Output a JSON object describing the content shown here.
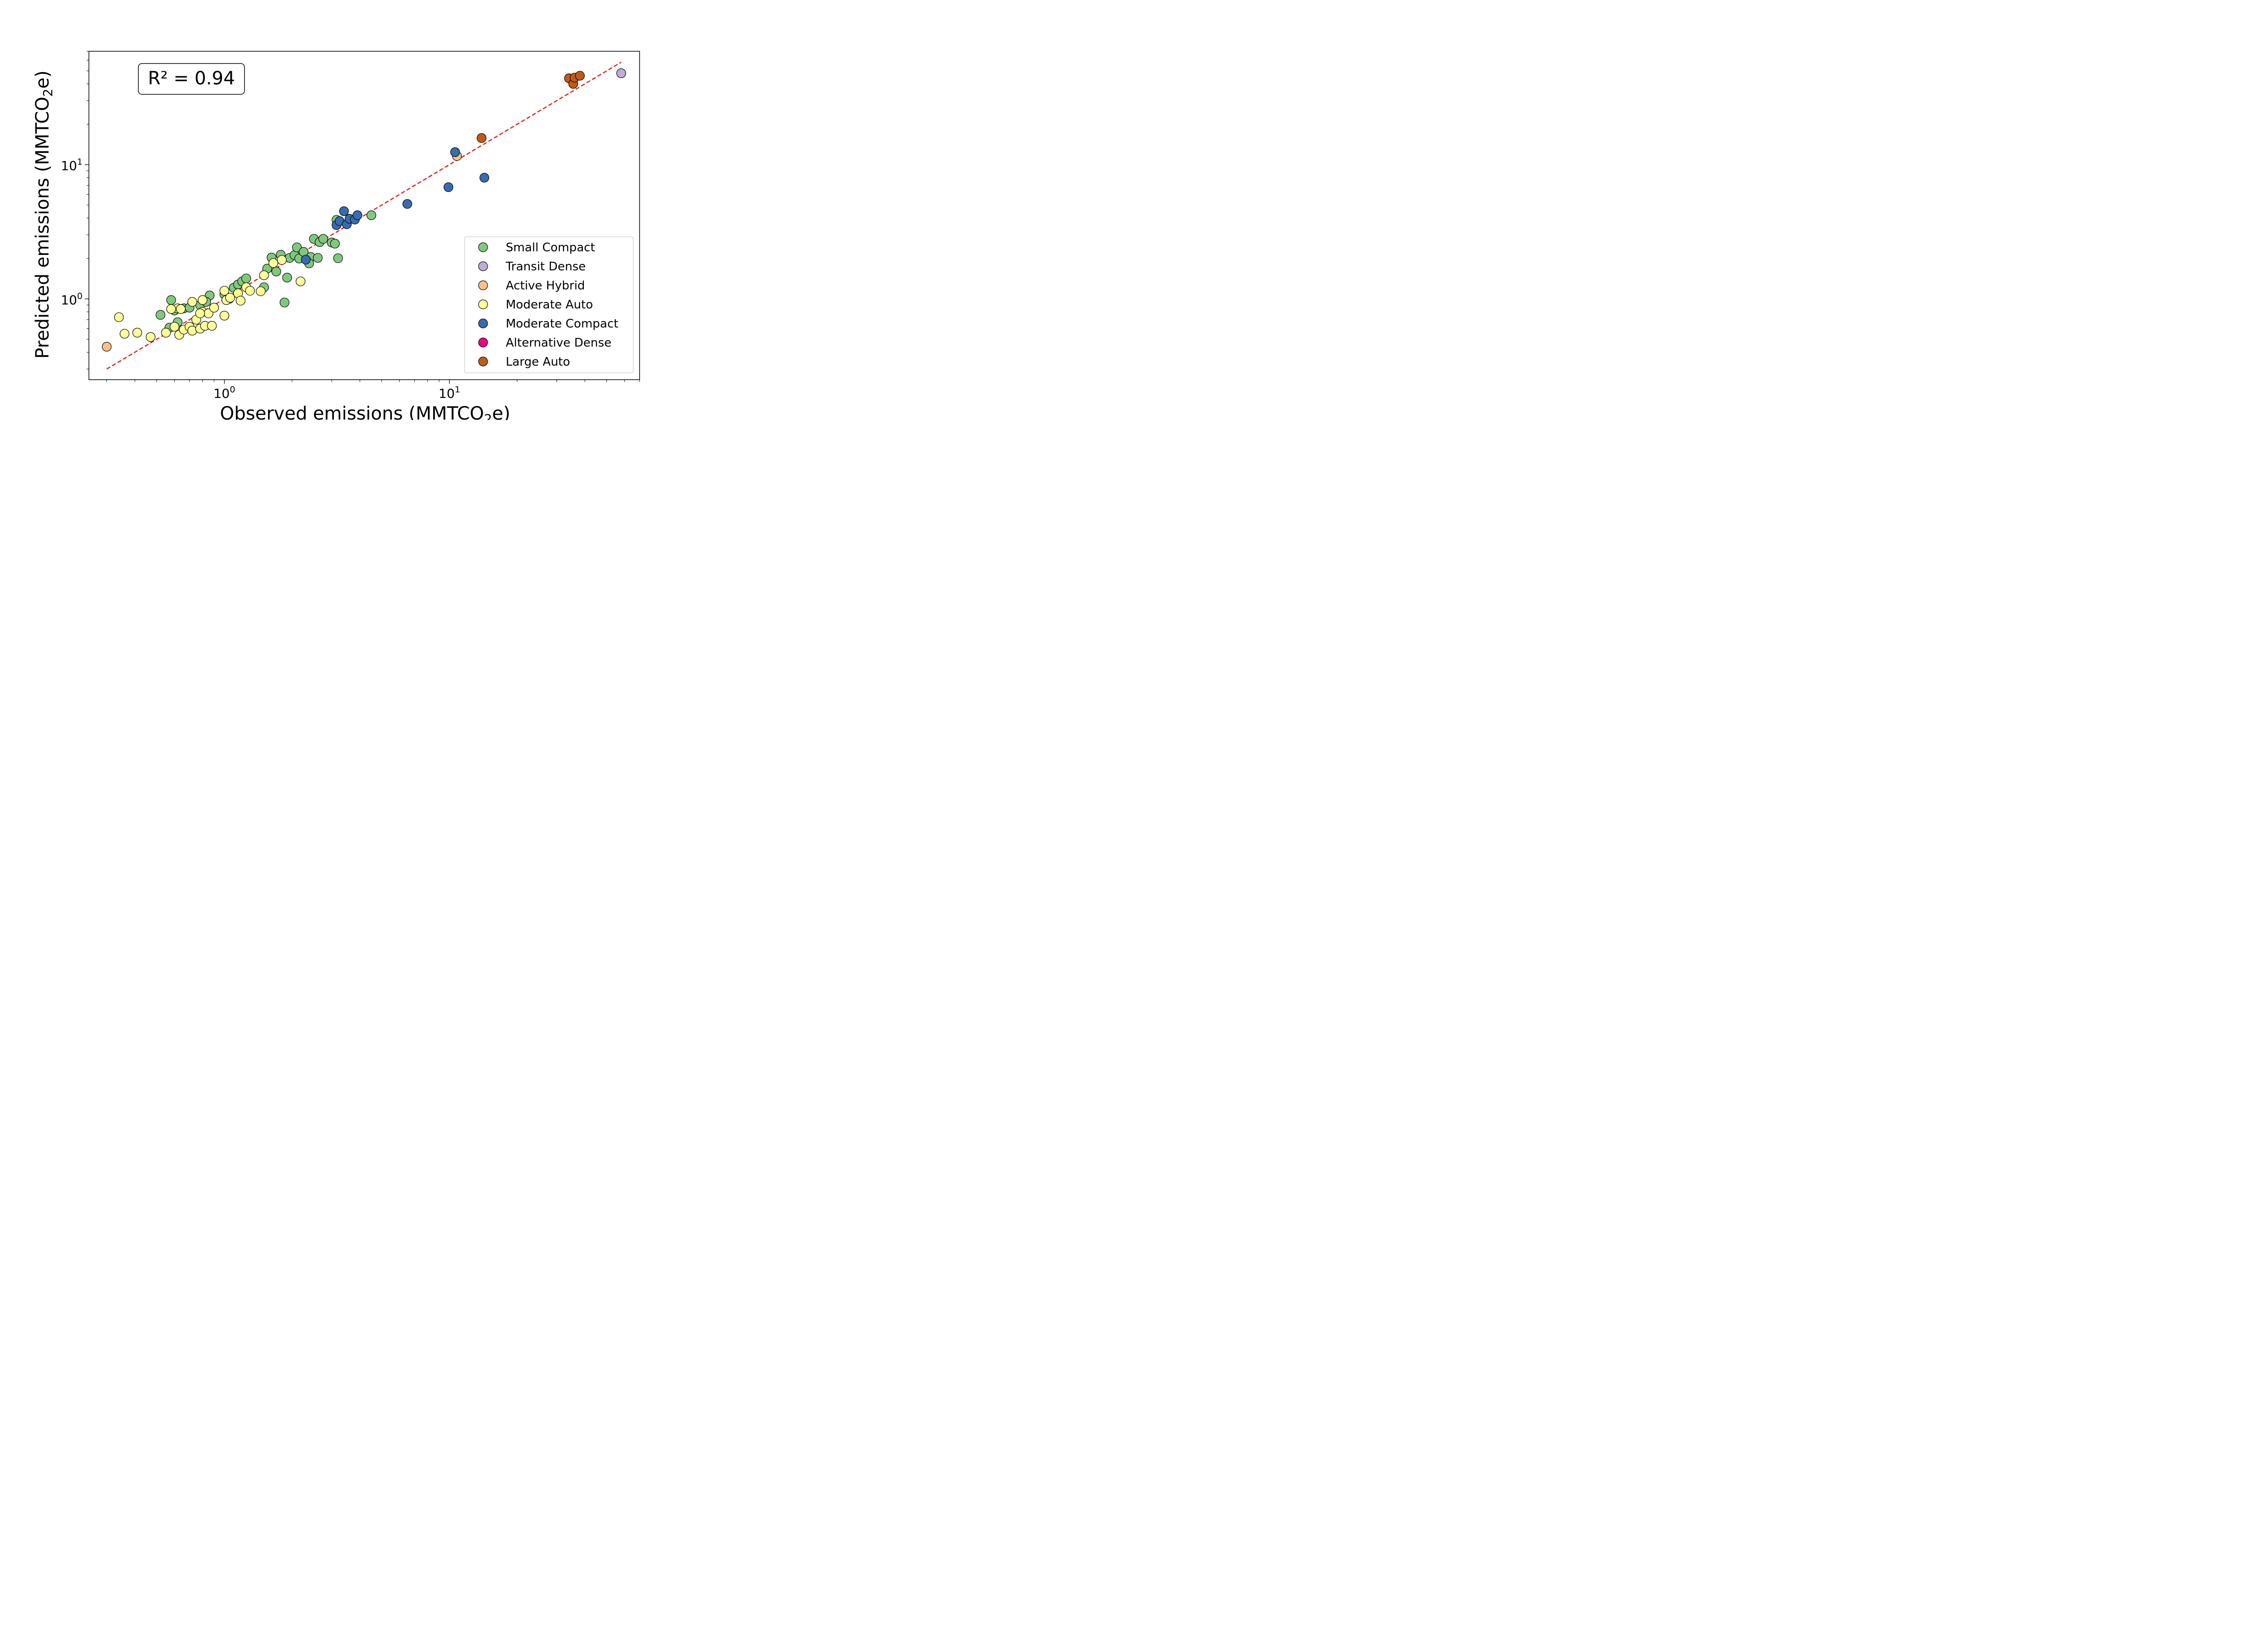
{
  "chart_data": {
    "type": "scatter",
    "title": "",
    "xlabel": "Observed emissions (MMTCO",
    "xlabel_sub": "2",
    "xlabel_end": "e)",
    "ylabel": "Predicted emissions (MMTCO",
    "ylabel_sub": "2",
    "ylabel_end": "e)",
    "x_scale": "log",
    "y_scale": "log",
    "xlim": [
      0.25,
      70
    ],
    "ylim": [
      0.25,
      70
    ],
    "grid": false,
    "legend_position": "lower right",
    "ticks": {
      "x": [
        {
          "value": 1,
          "base": "10",
          "exp": "0"
        },
        {
          "value": 10,
          "base": "10",
          "exp": "1"
        }
      ],
      "y": [
        {
          "value": 1,
          "base": "10",
          "exp": "0"
        },
        {
          "value": 10,
          "base": "10",
          "exp": "1"
        }
      ]
    },
    "annotation": "R² = 0.94",
    "reference_line": {
      "style": "dashed",
      "color": "#e41a1c",
      "from": [
        0.3,
        0.3
      ],
      "to": [
        58,
        58
      ]
    },
    "series": [
      {
        "name": "Small Compact",
        "color": "#7fc97f",
        "points": [
          [
            0.52,
            0.76
          ],
          [
            0.58,
            0.98
          ],
          [
            0.6,
            0.82
          ],
          [
            0.62,
            0.67
          ],
          [
            0.57,
            0.61
          ],
          [
            0.66,
            0.85
          ],
          [
            0.7,
            0.86
          ],
          [
            0.78,
            0.9
          ],
          [
            0.86,
            1.06
          ],
          [
            0.83,
            0.95
          ],
          [
            1.0,
            1.08
          ],
          [
            1.05,
            1.0
          ],
          [
            1.1,
            1.21
          ],
          [
            1.15,
            1.28
          ],
          [
            1.2,
            1.35
          ],
          [
            1.25,
            1.42
          ],
          [
            1.5,
            1.22
          ],
          [
            1.55,
            1.68
          ],
          [
            1.62,
            2.03
          ],
          [
            1.7,
            1.6
          ],
          [
            1.78,
            2.13
          ],
          [
            1.9,
            1.44
          ],
          [
            1.95,
            2.02
          ],
          [
            2.05,
            2.12
          ],
          [
            2.1,
            2.42
          ],
          [
            2.15,
            2.0
          ],
          [
            2.25,
            2.24
          ],
          [
            2.35,
            1.95
          ],
          [
            2.42,
            2.05
          ],
          [
            2.5,
            2.8
          ],
          [
            2.6,
            2.02
          ],
          [
            2.65,
            2.65
          ],
          [
            2.75,
            2.8
          ],
          [
            3.0,
            2.63
          ],
          [
            3.1,
            2.58
          ],
          [
            3.2,
            2.01
          ],
          [
            3.15,
            3.88
          ],
          [
            4.5,
            4.2
          ],
          [
            1.85,
            0.94
          ],
          [
            2.38,
            1.84
          ]
        ]
      },
      {
        "name": "Transit Dense",
        "color": "#beaed4",
        "points": [
          [
            58,
            48
          ]
        ]
      },
      {
        "name": "Active Hybrid",
        "color": "#fdc086",
        "points": [
          [
            0.3,
            0.44
          ],
          [
            10.8,
            11.6
          ]
        ]
      },
      {
        "name": "Moderate Auto",
        "color": "#ffff99",
        "points": [
          [
            0.34,
            0.73
          ],
          [
            0.36,
            0.55
          ],
          [
            0.41,
            0.56
          ],
          [
            0.47,
            0.52
          ],
          [
            0.55,
            0.56
          ],
          [
            0.6,
            0.62
          ],
          [
            0.62,
            0.85
          ],
          [
            0.63,
            0.54
          ],
          [
            0.66,
            0.59
          ],
          [
            0.7,
            0.62
          ],
          [
            0.72,
            0.58
          ],
          [
            0.75,
            0.7
          ],
          [
            0.78,
            0.6
          ],
          [
            0.8,
            0.8
          ],
          [
            0.82,
            0.63
          ],
          [
            0.85,
            0.78
          ],
          [
            0.88,
            0.63
          ],
          [
            0.72,
            0.95
          ],
          [
            0.78,
            0.78
          ],
          [
            0.8,
            0.98
          ],
          [
            0.9,
            0.86
          ],
          [
            1.0,
            0.75
          ],
          [
            1.0,
            1.15
          ],
          [
            1.02,
            0.98
          ],
          [
            1.06,
            1.02
          ],
          [
            1.15,
            1.1
          ],
          [
            1.18,
            0.97
          ],
          [
            1.25,
            1.22
          ],
          [
            1.3,
            1.15
          ],
          [
            1.45,
            1.14
          ],
          [
            1.5,
            1.5
          ],
          [
            1.65,
            1.85
          ],
          [
            1.8,
            1.95
          ],
          [
            2.18,
            1.35
          ],
          [
            0.58,
            0.84
          ],
          [
            0.64,
            0.84
          ]
        ]
      },
      {
        "name": "Moderate Compact",
        "color": "#386cb0",
        "points": [
          [
            3.15,
            3.55
          ],
          [
            3.25,
            3.8
          ],
          [
            3.4,
            4.5
          ],
          [
            3.5,
            3.6
          ],
          [
            3.6,
            3.95
          ],
          [
            3.8,
            3.9
          ],
          [
            3.9,
            4.2
          ],
          [
            2.3,
            1.96
          ],
          [
            6.5,
            5.1
          ],
          [
            9.9,
            6.8
          ],
          [
            10.6,
            12.4
          ],
          [
            14.3,
            8.0
          ]
        ]
      },
      {
        "name": "Alternative Dense",
        "color": "#f0027f",
        "points": []
      },
      {
        "name": "Large Auto",
        "color": "#bf5b17",
        "points": [
          [
            34,
            44
          ],
          [
            35.5,
            40
          ],
          [
            36,
            44.5
          ],
          [
            38,
            46
          ],
          [
            13.9,
            15.8
          ]
        ]
      }
    ]
  }
}
